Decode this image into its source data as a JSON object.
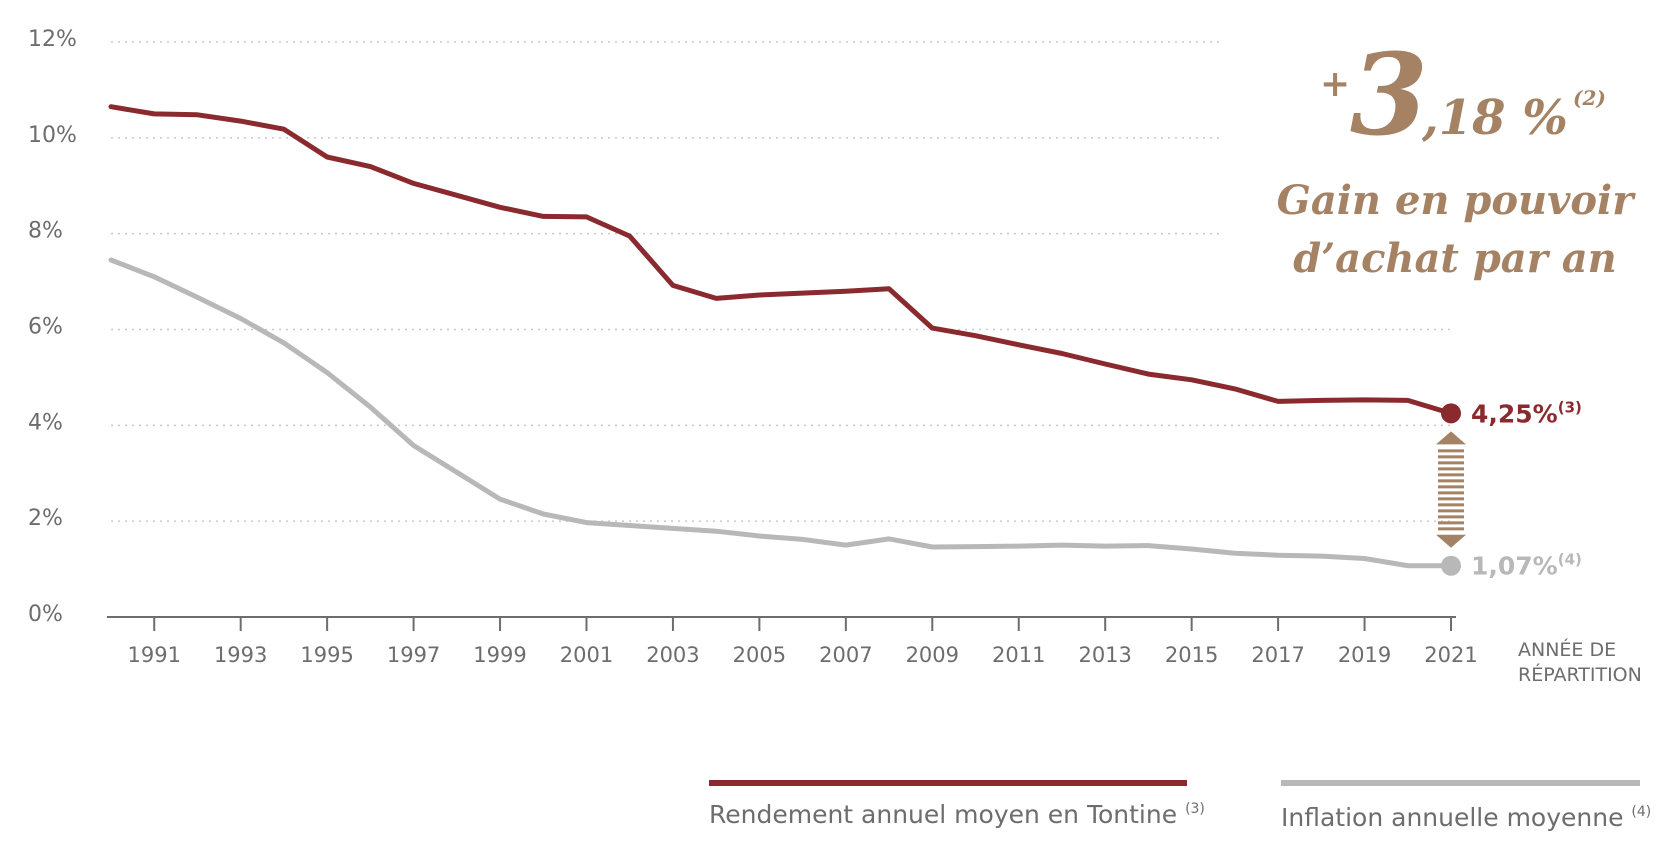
{
  "chart_data": {
    "type": "line",
    "x_label_lines": [
      "ANNÉE DE",
      "RÉPARTITION"
    ],
    "x_ticks": [
      1991,
      1993,
      1995,
      1997,
      1999,
      2001,
      2003,
      2005,
      2007,
      2009,
      2011,
      2013,
      2015,
      2017,
      2019,
      2021
    ],
    "x_range": [
      1990,
      2021
    ],
    "y_ticks": [
      {
        "value": 0,
        "label": "0%"
      },
      {
        "value": 2,
        "label": "2%"
      },
      {
        "value": 4,
        "label": "4%"
      },
      {
        "value": 6,
        "label": "6%"
      },
      {
        "value": 8,
        "label": "8%"
      },
      {
        "value": 10,
        "label": "10%"
      },
      {
        "value": 12,
        "label": "12%"
      }
    ],
    "ylim": [
      0,
      12
    ],
    "grid": "horizontal dotted",
    "legend_position": "bottom-right",
    "series": [
      {
        "name": "Rendement annuel moyen en Tontine",
        "name_sup": "(3)",
        "color": "#8b2a2e",
        "end_label": "4,25%",
        "end_sup": "(3)",
        "points": [
          [
            1990,
            10.65
          ],
          [
            1991,
            10.5
          ],
          [
            1992,
            10.48
          ],
          [
            1993,
            10.35
          ],
          [
            1994,
            10.18
          ],
          [
            1995,
            9.6
          ],
          [
            1996,
            9.4
          ],
          [
            1997,
            9.05
          ],
          [
            1998,
            8.8
          ],
          [
            1999,
            8.55
          ],
          [
            2000,
            8.36
          ],
          [
            2001,
            8.35
          ],
          [
            2002,
            7.95
          ],
          [
            2003,
            6.92
          ],
          [
            2004,
            6.65
          ],
          [
            2005,
            6.72
          ],
          [
            2006,
            6.76
          ],
          [
            2007,
            6.8
          ],
          [
            2008,
            6.85
          ],
          [
            2009,
            6.03
          ],
          [
            2010,
            5.87
          ],
          [
            2011,
            5.68
          ],
          [
            2012,
            5.5
          ],
          [
            2013,
            5.28
          ],
          [
            2014,
            5.07
          ],
          [
            2015,
            4.95
          ],
          [
            2016,
            4.76
          ],
          [
            2017,
            4.5
          ],
          [
            2018,
            4.52
          ],
          [
            2019,
            4.53
          ],
          [
            2020,
            4.52
          ],
          [
            2021,
            4.25
          ]
        ]
      },
      {
        "name": "Inflation annuelle moyenne",
        "name_sup": "(4)",
        "color": "#b8b8b8",
        "end_label": "1,07%",
        "end_sup": "(4)",
        "points": [
          [
            1990,
            7.45
          ],
          [
            1991,
            7.1
          ],
          [
            1992,
            6.67
          ],
          [
            1993,
            6.23
          ],
          [
            1994,
            5.72
          ],
          [
            1995,
            5.1
          ],
          [
            1996,
            4.38
          ],
          [
            1997,
            3.58
          ],
          [
            1998,
            3.02
          ],
          [
            1999,
            2.46
          ],
          [
            2000,
            2.15
          ],
          [
            2001,
            1.97
          ],
          [
            2002,
            1.91
          ],
          [
            2003,
            1.85
          ],
          [
            2004,
            1.79
          ],
          [
            2005,
            1.69
          ],
          [
            2006,
            1.62
          ],
          [
            2007,
            1.5
          ],
          [
            2008,
            1.63
          ],
          [
            2009,
            1.46
          ],
          [
            2010,
            1.47
          ],
          [
            2011,
            1.48
          ],
          [
            2012,
            1.5
          ],
          [
            2013,
            1.48
          ],
          [
            2014,
            1.49
          ],
          [
            2015,
            1.42
          ],
          [
            2016,
            1.33
          ],
          [
            2017,
            1.29
          ],
          [
            2018,
            1.27
          ],
          [
            2019,
            1.22
          ],
          [
            2020,
            1.07
          ],
          [
            2021,
            1.07
          ]
        ]
      }
    ],
    "callout": {
      "plus": "+",
      "big_number": "3",
      "decimal": ",18 %",
      "sup": "(2)",
      "line1": "Gain en pouvoir",
      "line2": "d’achat par an",
      "color": "#a48263"
    }
  }
}
